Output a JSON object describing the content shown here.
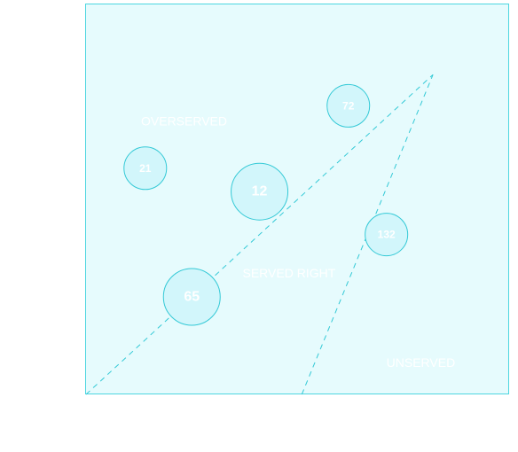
{
  "colors": {
    "plot_fill": "#e6fbfd",
    "plot_stroke": "#4dd6e0",
    "bubble_fill": "#d2f6fb",
    "bubble_stroke": "#33c9d6",
    "guide_line": "#33c9d6",
    "label_text": "#ffffff"
  },
  "chart_data": {
    "type": "scatter",
    "title": "",
    "xlabel": "",
    "ylabel": "",
    "xlim": [
      0,
      100
    ],
    "ylim": [
      0,
      100
    ],
    "grid": false,
    "zones": [
      {
        "label": "OVERSERVED",
        "x": 13,
        "y": 69
      },
      {
        "label": "SERVED RIGHT",
        "x": 37,
        "y": 30
      },
      {
        "label": "UNSERVED",
        "x": 71,
        "y": 7
      }
    ],
    "guide_lines": [
      {
        "x": [
          0,
          82
        ],
        "y": [
          0,
          82
        ]
      },
      {
        "x": [
          51,
          82
        ],
        "y": [
          0,
          82
        ]
      }
    ],
    "points": [
      {
        "label": "72",
        "x": 62,
        "y": 74,
        "size": 24
      },
      {
        "label": "21",
        "x": 14,
        "y": 58,
        "size": 24
      },
      {
        "label": "12",
        "x": 41,
        "y": 52,
        "size": 32
      },
      {
        "label": "132",
        "x": 71,
        "y": 41,
        "size": 24
      },
      {
        "label": "65",
        "x": 25,
        "y": 25,
        "size": 32
      }
    ]
  }
}
